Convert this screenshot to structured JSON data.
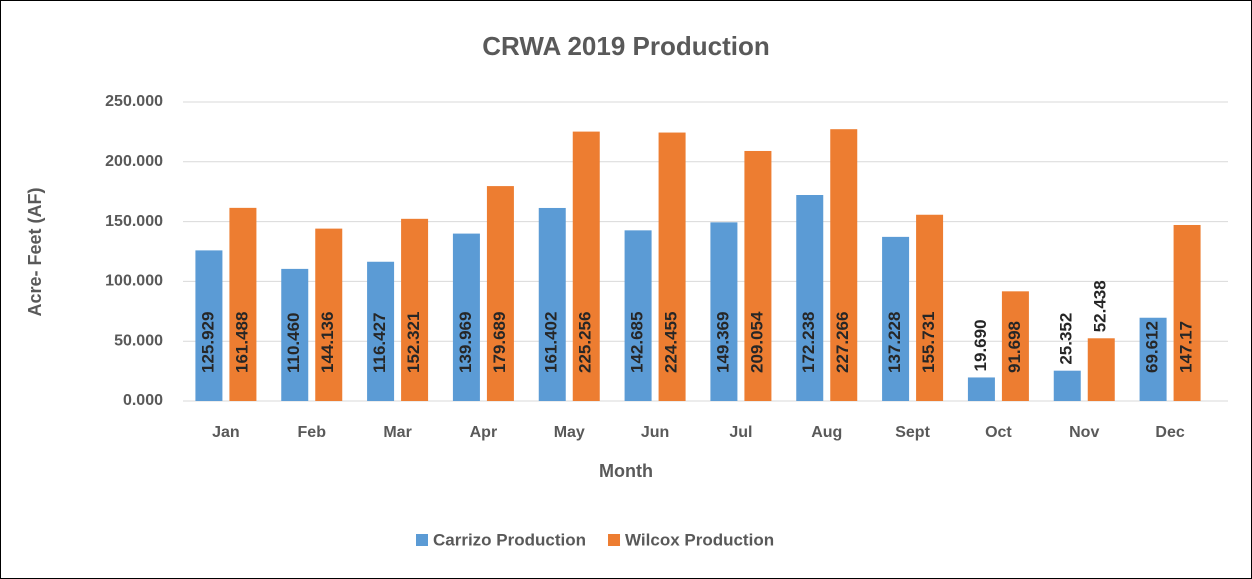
{
  "chart_data": {
    "type": "bar",
    "title": "CRWA 2019 Production",
    "x_label": "Month",
    "y_label": "Acre- Feet (AF)",
    "categories": [
      "Jan",
      "Feb",
      "Mar",
      "Apr",
      "May",
      "Jun",
      "Jul",
      "Aug",
      "Sept",
      "Oct",
      "Nov",
      "Dec"
    ],
    "series": [
      {
        "name": "Carrizo Production",
        "color": "#5b9bd5",
        "values": [
          125.929,
          110.46,
          116.427,
          139.969,
          161.402,
          142.685,
          149.369,
          172.238,
          137.228,
          19.69,
          25.352,
          69.612
        ],
        "value_labels": [
          "125.929",
          "110.460",
          "116.427",
          "139.969",
          "161.402",
          "142.685",
          "149.369",
          "172.238",
          "137.228",
          "19.690",
          "25.352",
          "69.612"
        ]
      },
      {
        "name": "Wilcox Production",
        "color": "#ed7d31",
        "values": [
          161.488,
          144.136,
          152.321,
          179.689,
          225.256,
          224.455,
          209.054,
          227.266,
          155.731,
          91.698,
          52.438,
          147.17
        ],
        "value_labels": [
          "161.488",
          "144.136",
          "152.321",
          "179.689",
          "225.256",
          "224.455",
          "209.054",
          "227.266",
          "155.731",
          "91.698",
          "52.438",
          "147.17"
        ]
      }
    ],
    "ylim": [
      0,
      250
    ],
    "yticks": [
      {
        "value": 0,
        "label": "0.000"
      },
      {
        "value": 50,
        "label": "50.000"
      },
      {
        "value": 100,
        "label": "100.000"
      },
      {
        "value": 150,
        "label": "150.000"
      },
      {
        "value": 200,
        "label": "200.000"
      },
      {
        "value": 250,
        "label": "250.000"
      }
    ],
    "grid": true,
    "legend": "bottom"
  }
}
